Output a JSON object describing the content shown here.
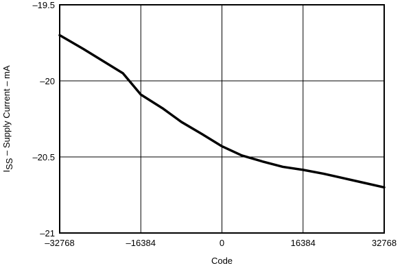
{
  "chart_data": {
    "type": "line",
    "title": "",
    "xlabel": "Code",
    "ylabel": {
      "symbol": "I",
      "subscript": "SS",
      "text": " – Supply Current – mA"
    },
    "xlim": [
      -32768,
      32768
    ],
    "ylim": [
      -21,
      -19.5
    ],
    "y_inverted": true,
    "grid": true,
    "x_ticks": [
      -32768,
      -16384,
      0,
      16384,
      32768
    ],
    "x_tick_labels": [
      "–32768",
      "–16384",
      "0",
      "16384",
      "32768"
    ],
    "y_ticks": [
      -19.5,
      -20,
      -20.5,
      -21
    ],
    "y_tick_labels": [
      "–19.5",
      "–20",
      "–20.5",
      "–21"
    ],
    "series": [
      {
        "color": "#000000",
        "x": [
          -32768,
          -28000,
          -24000,
          -20000,
          -16384,
          -12000,
          -8192,
          -4000,
          0,
          4000,
          8192,
          12288,
          16384,
          20480,
          24576,
          28672,
          32768
        ],
        "y": [
          -19.7,
          -19.79,
          -19.87,
          -19.95,
          -20.09,
          -20.18,
          -20.27,
          -20.35,
          -20.43,
          -20.49,
          -20.53,
          -20.565,
          -20.585,
          -20.61,
          -20.64,
          -20.67,
          -20.7
        ]
      }
    ]
  }
}
